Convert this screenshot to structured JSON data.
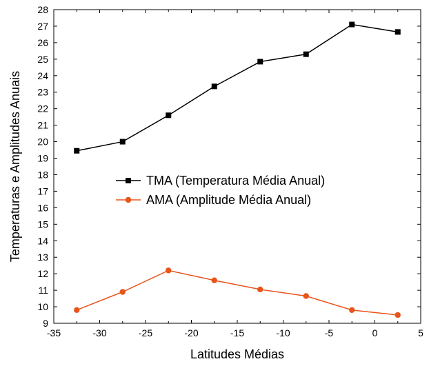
{
  "chart_data": {
    "type": "line",
    "xlabel": "Latitudes Médias",
    "ylabel": "Temperaturas e Amplitudes Anuais",
    "xlim": [
      -35,
      5
    ],
    "ylim": [
      9,
      28
    ],
    "xticks": [
      "-35",
      "-30",
      "-25",
      "-20",
      "-15",
      "-10",
      "-5",
      "0",
      "5"
    ],
    "yticks": [
      "9",
      "10",
      "11",
      "12",
      "13",
      "14",
      "15",
      "16",
      "17",
      "18",
      "19",
      "20",
      "21",
      "22",
      "23",
      "24",
      "25",
      "26",
      "27",
      "28"
    ],
    "x": [
      -32.5,
      -27.5,
      -22.5,
      -17.5,
      -12.5,
      -7.5,
      -2.5,
      2.5
    ],
    "series": [
      {
        "name": "TMA (Temperatura Média Anual)",
        "values": [
          19.45,
          20.0,
          21.6,
          23.35,
          24.85,
          25.3,
          27.1,
          26.65
        ],
        "color": "#000000",
        "marker": "square"
      },
      {
        "name": "AMA (Amplitude Média Anual)",
        "values": [
          9.8,
          10.9,
          12.2,
          11.6,
          11.05,
          10.65,
          9.8,
          9.5
        ],
        "color": "#e8541a",
        "marker": "circle"
      }
    ],
    "legend_position": "center-left",
    "grid": false
  }
}
